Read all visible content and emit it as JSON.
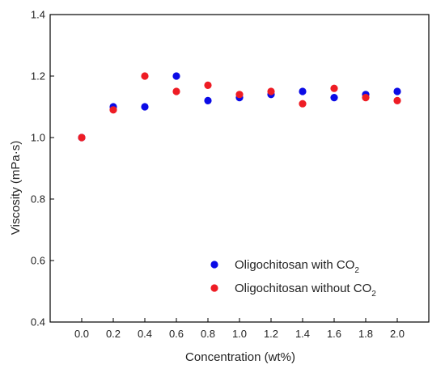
{
  "chart_data": {
    "type": "scatter",
    "title": "",
    "xlabel": "Concentration (wt%)",
    "ylabel": "Viscosity (mPa·s)",
    "xlim": [
      -0.2,
      2.2
    ],
    "ylim": [
      0.4,
      1.4
    ],
    "x_ticks": [
      "0.0",
      "0.2",
      "0.4",
      "0.6",
      "0.8",
      "1.0",
      "1.2",
      "1.4",
      "1.6",
      "1.8",
      "2.0"
    ],
    "y_ticks": [
      "0.4",
      "0.6",
      "0.8",
      "1.0",
      "1.2",
      "1.4"
    ],
    "legend_position": "bottom-right",
    "series": [
      {
        "name": "Oligochitosan with CO",
        "name_subscript": "2",
        "color": "#0b0be6",
        "x": [
          0.0,
          0.2,
          0.4,
          0.6,
          0.8,
          1.0,
          1.2,
          1.4,
          1.6,
          1.8,
          2.0
        ],
        "y": [
          1.0,
          1.1,
          1.1,
          1.2,
          1.12,
          1.13,
          1.14,
          1.15,
          1.13,
          1.14,
          1.15
        ]
      },
      {
        "name": "Oligochitosan without CO",
        "name_subscript": "2",
        "color": "#ee1c24",
        "x": [
          0.0,
          0.2,
          0.4,
          0.6,
          0.8,
          1.0,
          1.2,
          1.4,
          1.6,
          1.8,
          2.0
        ],
        "y": [
          1.0,
          1.09,
          1.2,
          1.15,
          1.17,
          1.14,
          1.15,
          1.11,
          1.16,
          1.13,
          1.12
        ]
      }
    ]
  }
}
